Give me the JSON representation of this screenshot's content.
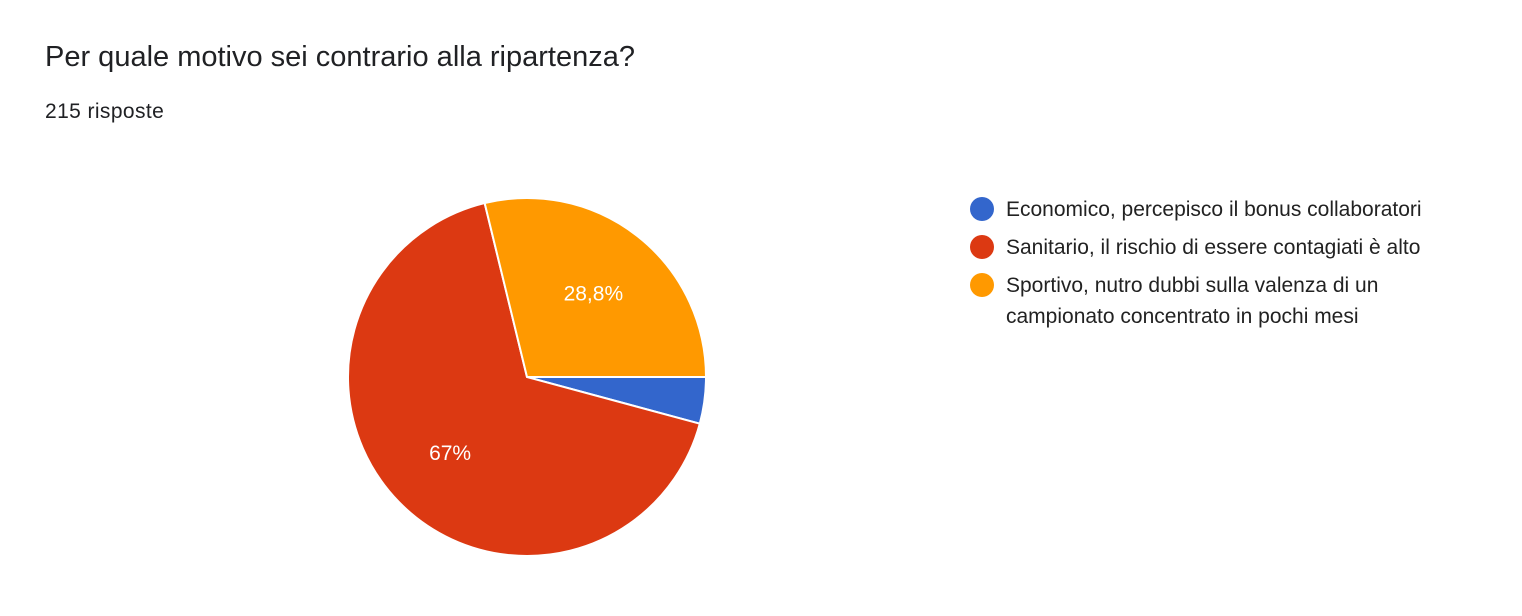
{
  "header": {
    "title": "Per quale motivo sei contrario alla ripartenza?",
    "responses": "215 risposte"
  },
  "colors": {
    "economico": "#3366cc",
    "sanitario": "#dc3912",
    "sportivo": "#ff9900",
    "slice_label": "#ffffff",
    "slice_border": "#ffffff"
  },
  "chart_data": {
    "type": "pie",
    "title": "Per quale motivo sei contrario alla ripartenza?",
    "subtitle": "215 risposte",
    "start_angle_deg": 90,
    "direction": "clockwise",
    "legend_position": "right",
    "slices": [
      {
        "label": "Economico, percepisco il bonus collaboratori",
        "value": 4.2,
        "data_label": "",
        "color": "#3366cc"
      },
      {
        "label": "Sanitario, il rischio di essere contagiati è alto",
        "value": 67.0,
        "data_label": "67%",
        "color": "#dc3912"
      },
      {
        "label": "Sportivo, nutro dubbi sulla valenza di un campionato concentrato in pochi mesi",
        "value": 28.8,
        "data_label": "28,8%",
        "color": "#ff9900"
      }
    ]
  }
}
